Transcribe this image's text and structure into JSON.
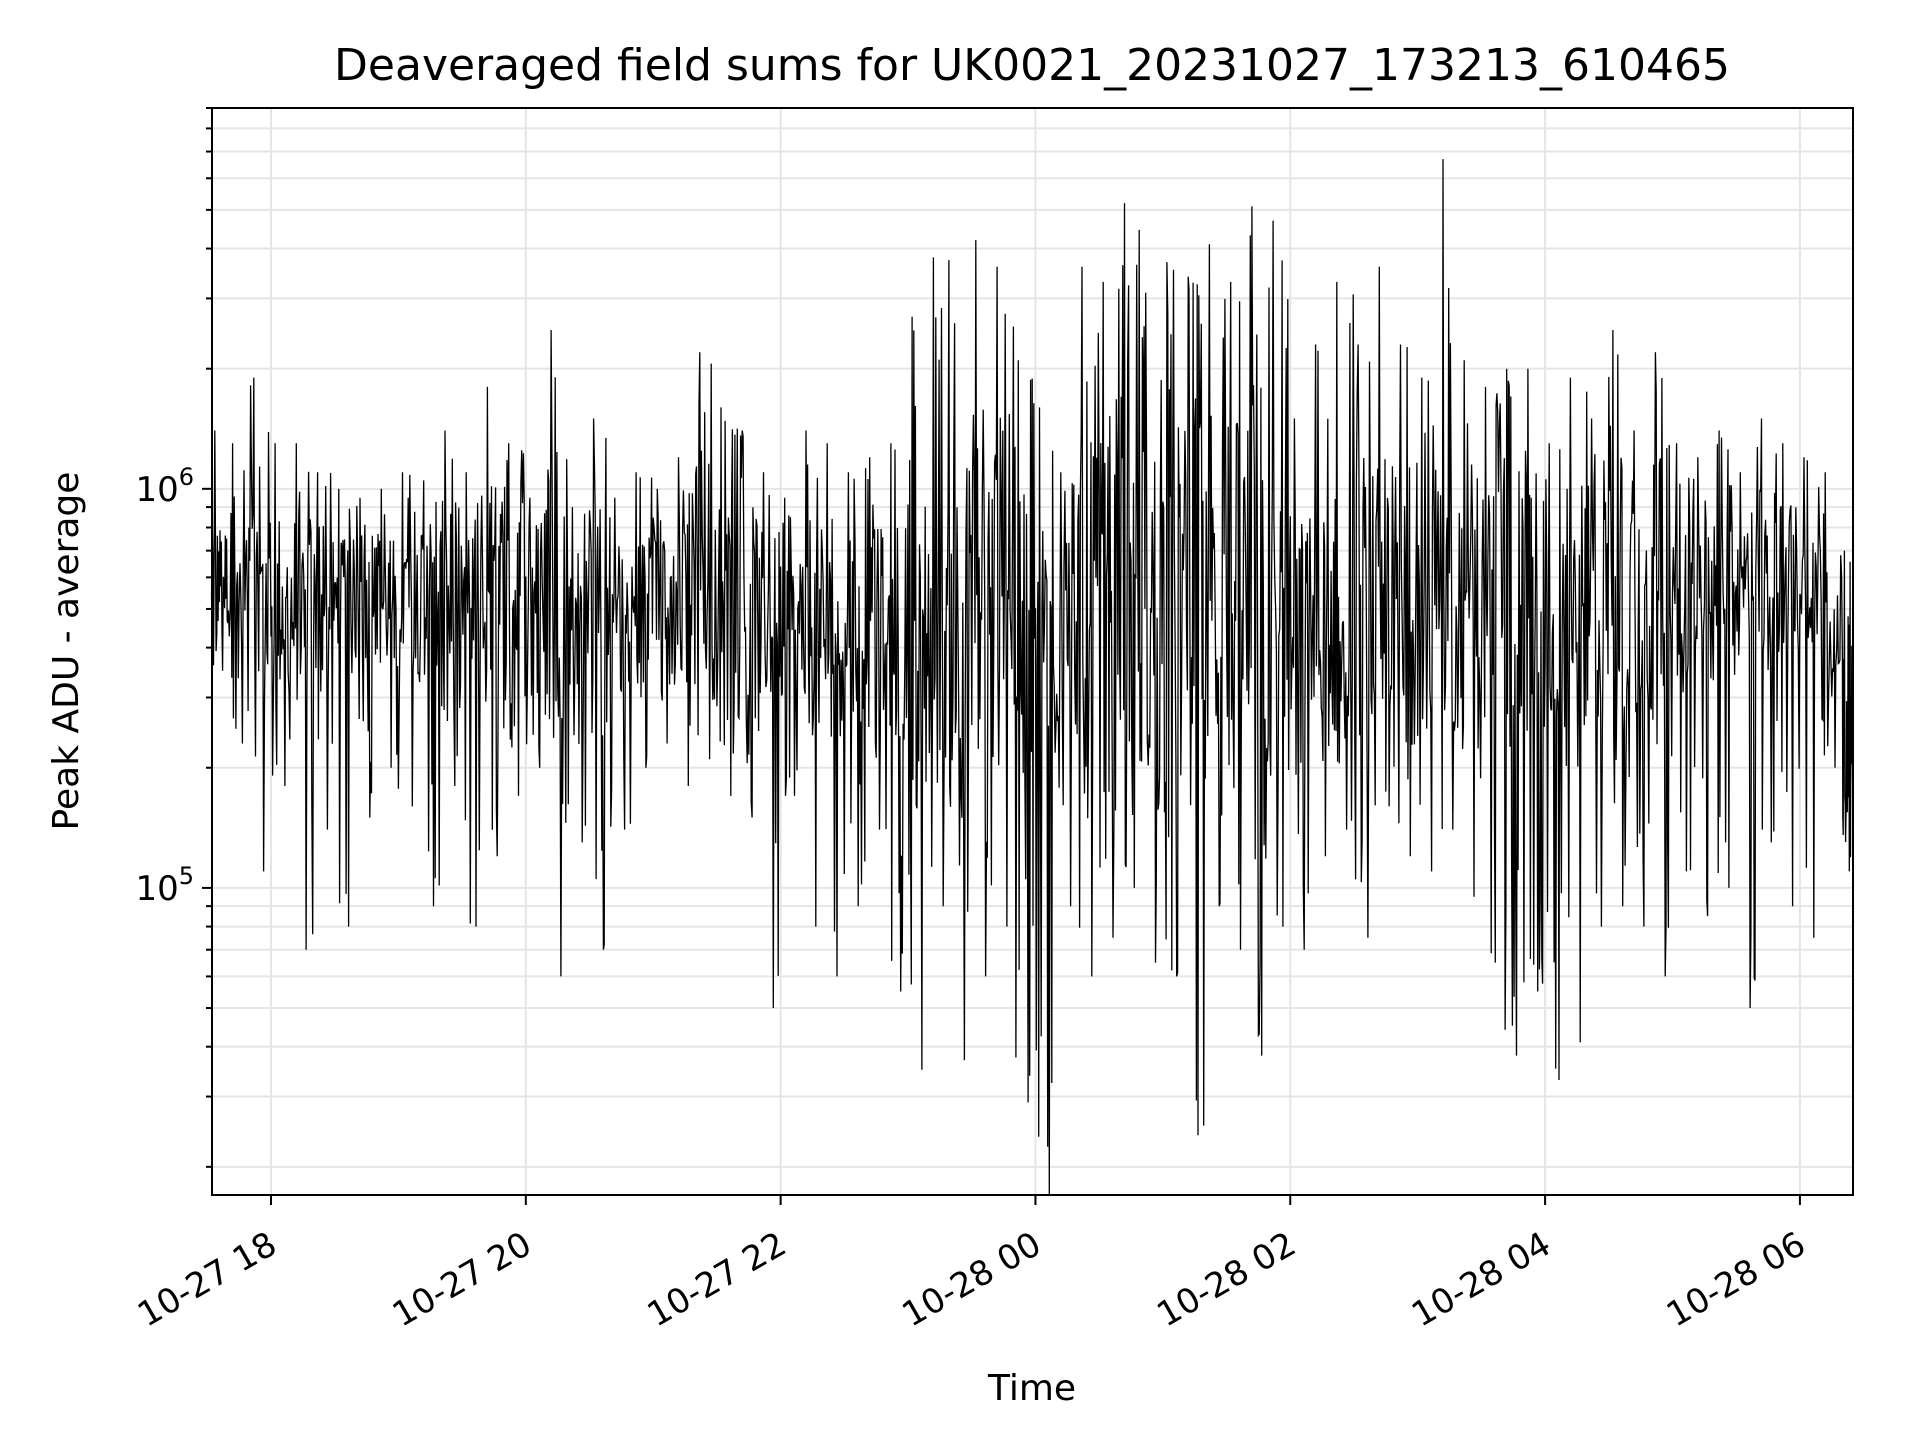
{
  "chart_data": {
    "type": "line",
    "title": "Deaveraged field sums for UK0021_20231027_173213_610465",
    "xlabel": "Time",
    "ylabel": "Peak ADU - average",
    "yscale": "log",
    "ylim": [
      17000,
      9000000
    ],
    "xlim": [
      "2023-10-27 17:32:13",
      "2023-10-28 06:25:00"
    ],
    "grid": true,
    "legend": "none",
    "line_color": "#000000",
    "grid_color": "#e5e5e5",
    "x_ticks": [
      {
        "time": "2023-10-27 18:00",
        "label": "10-27 18"
      },
      {
        "time": "2023-10-27 20:00",
        "label": "10-27 20"
      },
      {
        "time": "2023-10-27 22:00",
        "label": "10-27 22"
      },
      {
        "time": "2023-10-28 00:00",
        "label": "10-28 00"
      },
      {
        "time": "2023-10-28 02:00",
        "label": "10-28 02"
      },
      {
        "time": "2023-10-28 04:00",
        "label": "10-28 04"
      },
      {
        "time": "2023-10-28 06:00",
        "label": "10-28 06"
      }
    ],
    "y_ticks": [
      {
        "value": 100000,
        "base": "10",
        "exp": "5"
      },
      {
        "value": 1000000,
        "base": "10",
        "exp": "6"
      }
    ],
    "series": [
      {
        "x": [
          "2023-10-27 17:32",
          "2023-10-27 17:40",
          "2023-10-27 17:50",
          "2023-10-27 18:00",
          "2023-10-27 18:10",
          "2023-10-27 18:20",
          "2023-10-27 18:30",
          "2023-10-27 18:40",
          "2023-10-27 18:50",
          "2023-10-27 19:00",
          "2023-10-27 19:10",
          "2023-10-27 19:20",
          "2023-10-27 19:30",
          "2023-10-27 19:40",
          "2023-10-27 19:50",
          "2023-10-27 20:00",
          "2023-10-27 20:10",
          "2023-10-27 20:20",
          "2023-10-27 20:30",
          "2023-10-27 20:40",
          "2023-10-27 20:50",
          "2023-10-27 21:00",
          "2023-10-27 21:10",
          "2023-10-27 21:20",
          "2023-10-27 21:30",
          "2023-10-27 21:40",
          "2023-10-27 21:50",
          "2023-10-27 22:00",
          "2023-10-27 22:10",
          "2023-10-27 22:20",
          "2023-10-27 22:30",
          "2023-10-27 22:40",
          "2023-10-27 22:50",
          "2023-10-27 23:00",
          "2023-10-27 23:10",
          "2023-10-27 23:20",
          "2023-10-27 23:30",
          "2023-10-27 23:40",
          "2023-10-27 23:50",
          "2023-10-28 00:00",
          "2023-10-28 00:10",
          "2023-10-28 00:20",
          "2023-10-28 00:30",
          "2023-10-28 00:40",
          "2023-10-28 00:50",
          "2023-10-28 01:00",
          "2023-10-28 01:10",
          "2023-10-28 01:20",
          "2023-10-28 01:30",
          "2023-10-28 01:40",
          "2023-10-28 01:50",
          "2023-10-28 02:00",
          "2023-10-28 02:10",
          "2023-10-28 02:20",
          "2023-10-28 02:30",
          "2023-10-28 02:40",
          "2023-10-28 02:50",
          "2023-10-28 03:00",
          "2023-10-28 03:10",
          "2023-10-28 03:20",
          "2023-10-28 03:30",
          "2023-10-28 03:40",
          "2023-10-28 03:50",
          "2023-10-28 04:00",
          "2023-10-28 04:10",
          "2023-10-28 04:20",
          "2023-10-28 04:30",
          "2023-10-28 04:40",
          "2023-10-28 04:50",
          "2023-10-28 05:00",
          "2023-10-28 05:10",
          "2023-10-28 05:20",
          "2023-10-28 05:30",
          "2023-10-28 05:40",
          "2023-10-28 05:50",
          "2023-10-28 06:00",
          "2023-10-28 06:10",
          "2023-10-28 06:20",
          "2023-10-28 06:25"
        ],
        "low": [
          350000,
          230000,
          110000,
          180000,
          70000,
          140000,
          80000,
          150000,
          200000,
          160000,
          90000,
          180000,
          80000,
          120000,
          170000,
          200000,
          60000,
          130000,
          70000,
          140000,
          200000,
          230000,
          180000,
          210000,
          170000,
          150000,
          50000,
          170000,
          80000,
          60000,
          90000,
          140000,
          55000,
          35000,
          90000,
          37000,
          60000,
          80000,
          29000,
          17000,
          90000,
          60000,
          75000,
          100000,
          65000,
          60000,
          24000,
          90000,
          70000,
          38000,
          80000,
          70000,
          120000,
          140000,
          75000,
          160000,
          120000,
          110000,
          140000,
          95000,
          65000,
          38000,
          55000,
          33000,
          41000,
          80000,
          90000,
          80000,
          60000,
          110000,
          85000,
          100000,
          50000,
          130000,
          90000,
          75000,
          200000,
          110000,
          50000
        ],
        "high": [
          1400000,
          1300000,
          1900000,
          1300000,
          1300000,
          1100000,
          1000000,
          950000,
          1000000,
          1100000,
          1050000,
          1400000,
          1100000,
          1800000,
          1300000,
          950000,
          2500000,
          900000,
          1500000,
          950000,
          1100000,
          1000000,
          1200000,
          2200000,
          1600000,
          1400000,
          1100000,
          950000,
          1400000,
          1300000,
          1100000,
          1200000,
          1300000,
          2700000,
          3800000,
          2600000,
          4200000,
          3600000,
          2100000,
          1600000,
          1100000,
          3600000,
          3300000,
          5200000,
          3100000,
          3700000,
          3400000,
          4100000,
          3300000,
          5100000,
          4700000,
          1500000,
          2300000,
          3300000,
          2300000,
          3600000,
          2300000,
          1900000,
          6700000,
          2100000,
          1800000,
          2000000,
          2000000,
          1300000,
          1900000,
          1500000,
          2500000,
          1400000,
          2200000,
          1300000,
          1200000,
          1400000,
          1100000,
          1500000,
          1300000,
          1200000,
          1100000,
          700000,
          400000
        ],
        "typical": [
          600000,
          550000,
          480000,
          520000,
          500000,
          480000,
          500000,
          520000,
          510000,
          530000,
          500000,
          510000,
          520000,
          520000,
          500000,
          480000,
          480000,
          470000,
          460000,
          470000,
          480000,
          500000,
          500000,
          490000,
          500000,
          490000,
          470000,
          450000,
          460000,
          450000,
          430000,
          440000,
          430000,
          440000,
          450000,
          430000,
          460000,
          520000,
          460000,
          420000,
          420000,
          430000,
          450000,
          480000,
          460000,
          480000,
          450000,
          470000,
          480000,
          460000,
          440000,
          400000,
          420000,
          480000,
          540000,
          560000,
          540000,
          520000,
          540000,
          510000,
          500000,
          480000,
          470000,
          450000,
          450000,
          460000,
          480000,
          470000,
          480000,
          500000,
          520000,
          560000,
          560000,
          580000,
          600000,
          600000,
          520000,
          250000,
          150000
        ]
      }
    ]
  }
}
